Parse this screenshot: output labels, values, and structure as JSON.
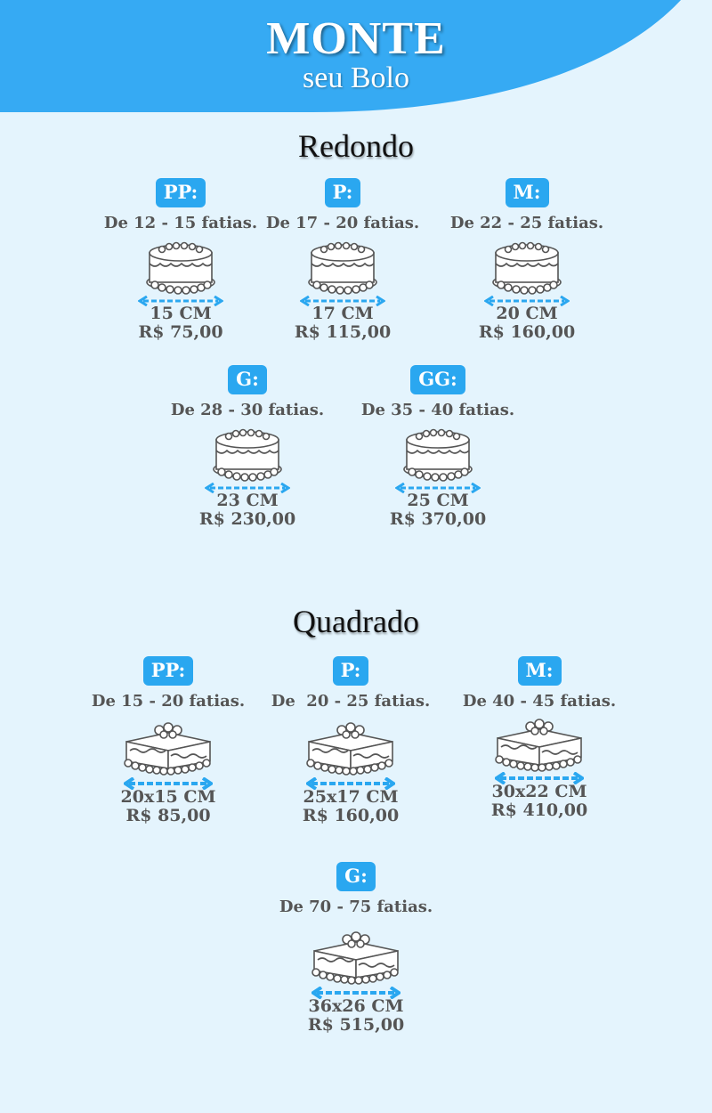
{
  "header": {
    "title": "MONTE",
    "subtitle": "seu Bolo"
  },
  "colors": {
    "accent": "#2aa7f0",
    "background": "#e4f4fd",
    "text": "#555555",
    "header": "#36aaf3"
  },
  "icons": {
    "round": "round-cake-icon",
    "square": "square-cake-icon",
    "arrow": "double-arrow-icon"
  },
  "round": {
    "title": "Redondo",
    "items": [
      {
        "size": "PP:",
        "slices": "De 12 - 15 fatias.",
        "dimension": "15 CM",
        "price": "R$ 75,00"
      },
      {
        "size": "P:",
        "slices": "De 17 - 20 fatias.",
        "dimension": "17 CM",
        "price": "R$ 115,00"
      },
      {
        "size": "M:",
        "slices": "De 22 - 25 fatias.",
        "dimension": "20 CM",
        "price": "R$ 160,00"
      },
      {
        "size": "G:",
        "slices": "De 28 - 30 fatias.",
        "dimension": "23 CM",
        "price": "R$ 230,00"
      },
      {
        "size": "GG:",
        "slices": "De 35 - 40 fatias.",
        "dimension": "25 CM",
        "price": "R$ 370,00"
      }
    ]
  },
  "square": {
    "title": "Quadrado",
    "items": [
      {
        "size": "PP:",
        "slices": "De 15 - 20 fatias.",
        "dimension": "20x15 CM",
        "price": "R$ 85,00"
      },
      {
        "size": "P:",
        "slices": "De  20 - 25 fatias.",
        "dimension": "25x17 CM",
        "price": "R$ 160,00"
      },
      {
        "size": "M:",
        "slices": "De 40 - 45 fatias.",
        "dimension": "30x22 CM",
        "price": "R$ 410,00"
      },
      {
        "size": "G:",
        "slices": "De 70 - 75 fatias.",
        "dimension": "36x26 CM",
        "price": "R$ 515,00"
      }
    ]
  }
}
